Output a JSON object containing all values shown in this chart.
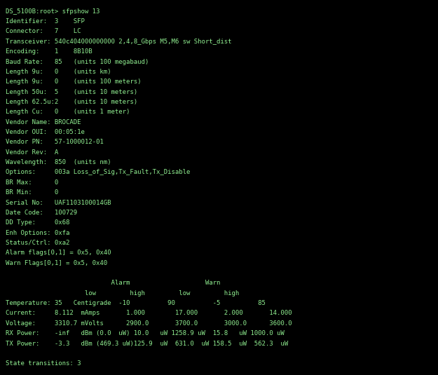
{
  "background_color": "#000000",
  "text_color": "#90EE90",
  "font_family": "monospace",
  "font_size": 6.5,
  "figsize": [
    6.25,
    5.35
  ],
  "dpi": 100,
  "lines": [
    "DS_5100B:root> sfpshow 13",
    "Identifier:  3    SFP",
    "Connector:   7    LC",
    "Transceiver: 540c404000000000 2,4,8_Gbps M5,M6 sw Short_dist",
    "Encoding:    1    8B10B",
    "Baud Rate:   85   (units 100 megabaud)",
    "Length 9u:   0    (units km)",
    "Length 9u:   0    (units 100 meters)",
    "Length 50u:  5    (units 10 meters)",
    "Length 62.5u:2    (units 10 meters)",
    "Length Cu:   0    (units 1 meter)",
    "Vendor Name: BROCADE",
    "Vendor OUI:  00:05:1e",
    "Vendor PN:   57-1000012-01",
    "Vendor Rev:  A",
    "Wavelength:  850  (units nm)",
    "Options:     003a Loss_of_Sig,Tx_Fault,Tx_Disable",
    "BR Max:      0",
    "BR Min:      0",
    "Serial No:   UAF1103100014GB",
    "Date Code:   100729",
    "DD Type:     0x68",
    "Enh Options: 0xfa",
    "Status/Ctrl: 0xa2",
    "Alarm flags[0,1] = 0x5, 0x40",
    "Warn Flags[0,1] = 0x5, 0x40",
    "",
    "                            Alarm                    Warn",
    "                     low         high         low         high",
    "Temperature: 35   Centigrade  -10          90          -5          85",
    "Current:     8.112  mAmps       1.000        17.000       2.000       14.000",
    "Voltage:     3310.7 mVolts      2900.0       3700.0       3000.0      3600.0",
    "RX Power:    -inf   dBm (0.0  uW) 10.0   uW 1258.9 uW  15.8   uW 1000.0 uW",
    "TX Power:    -3.3   dBm (469.3 uW)125.9  uW  631.0  uW 158.5  uW  562.3  uW",
    "",
    "State transitions: 3"
  ]
}
